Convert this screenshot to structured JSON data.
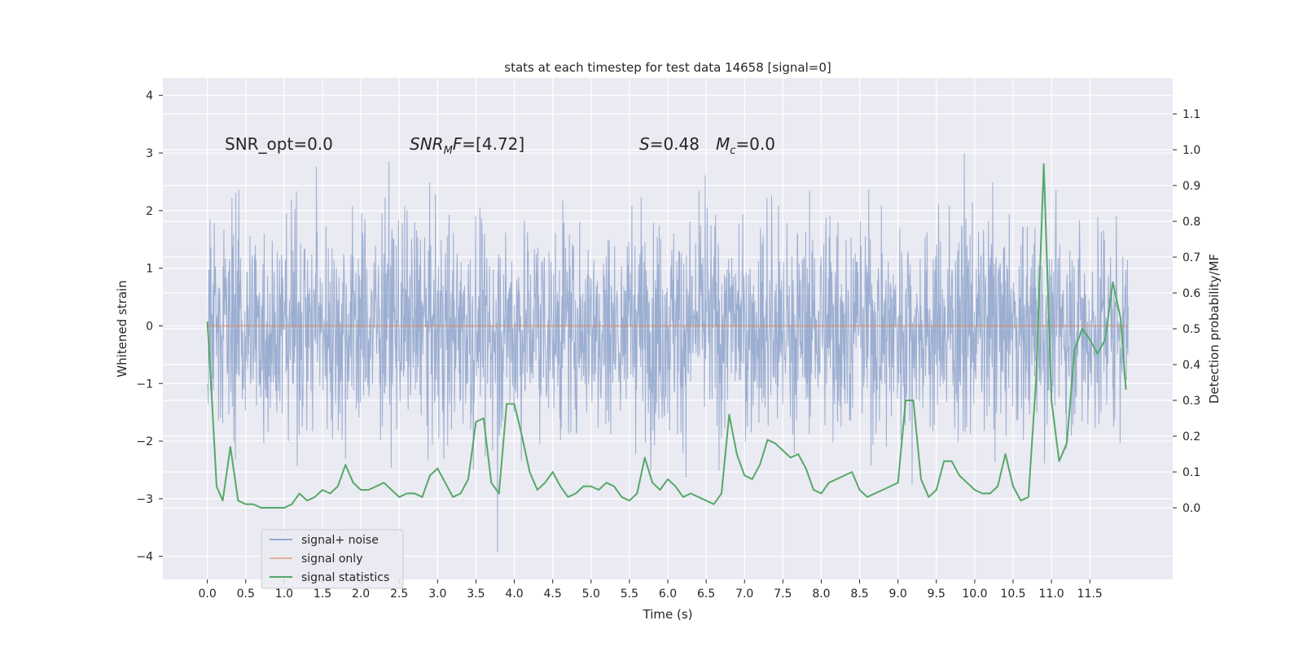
{
  "chart_data": {
    "type": "line",
    "title": "stats at each timestep for test data 14658 [signal=0]",
    "xlabel": "Time (s)",
    "ylabel_left": "Whitened strain",
    "ylabel_right": "Detection probability/MF",
    "xlim": [
      -0.58,
      12.58
    ],
    "ylim_left": [
      -4.4,
      4.3
    ],
    "ylim_right": [
      -0.2,
      1.2
    ],
    "x_ticks": [
      "0.0",
      "0.5",
      "1.0",
      "1.5",
      "2.0",
      "2.5",
      "3.0",
      "3.5",
      "4.0",
      "4.5",
      "5.0",
      "5.5",
      "6.0",
      "6.5",
      "7.0",
      "7.5",
      "8.0",
      "8.5",
      "9.0",
      "9.5",
      "10.0",
      "10.5",
      "11.0",
      "11.5"
    ],
    "y_ticks_left": [
      "4",
      "3",
      "2",
      "1",
      "0",
      "−1",
      "−2",
      "−3",
      "−4"
    ],
    "y_ticks_right": [
      "1.1",
      "1.0",
      "0.9",
      "0.8",
      "0.7",
      "0.6",
      "0.5",
      "0.4",
      "0.3",
      "0.2",
      "0.1",
      "0.0"
    ],
    "grid": true,
    "background": "#eaeaf2",
    "annotations": {
      "snr_opt": "SNR_opt=0.0",
      "snr_mf_prefix": "SNR",
      "snr_mf_sub": "M",
      "snr_mf_mid": "F",
      "snr_mf_value": "=[4.72]",
      "s_symbol": "S",
      "s_value": "=0.48",
      "mc_symbol": "M",
      "mc_sub": "c",
      "mc_value": "=0.0"
    },
    "legend": {
      "position": "lower left",
      "entries": [
        {
          "label": "signal+ noise",
          "color": "#4c72b0"
        },
        {
          "label": "signal only",
          "color": "#dd8452"
        },
        {
          "label": "signal statistics",
          "color": "#55a868"
        }
      ]
    },
    "series": [
      {
        "name": "signal+ noise",
        "axis": "left",
        "color": "#4c72b0",
        "x_range": [
          0.0,
          12.0
        ],
        "typical_amplitude": 1.2,
        "envelope_max": 3.9,
        "envelope_min": -4.1
      },
      {
        "name": "signal only",
        "axis": "left",
        "color": "#dd8452",
        "x": [
          0.0,
          12.0
        ],
        "y": [
          0.0,
          0.0
        ]
      },
      {
        "name": "signal statistics",
        "axis": "right",
        "color": "#55a868",
        "x": [
          0.0,
          0.06,
          0.12,
          0.2,
          0.3,
          0.4,
          0.5,
          0.6,
          0.7,
          0.8,
          0.9,
          1.0,
          1.1,
          1.2,
          1.3,
          1.4,
          1.5,
          1.6,
          1.7,
          1.8,
          1.9,
          2.0,
          2.1,
          2.2,
          2.3,
          2.4,
          2.5,
          2.6,
          2.7,
          2.8,
          2.9,
          3.0,
          3.1,
          3.2,
          3.3,
          3.4,
          3.5,
          3.6,
          3.7,
          3.8,
          3.9,
          4.0,
          4.1,
          4.2,
          4.3,
          4.4,
          4.5,
          4.6,
          4.7,
          4.8,
          4.9,
          5.0,
          5.1,
          5.2,
          5.3,
          5.4,
          5.5,
          5.6,
          5.7,
          5.8,
          5.9,
          6.0,
          6.1,
          6.2,
          6.3,
          6.4,
          6.5,
          6.6,
          6.7,
          6.8,
          6.9,
          7.0,
          7.1,
          7.2,
          7.3,
          7.4,
          7.5,
          7.6,
          7.7,
          7.8,
          7.9,
          8.0,
          8.1,
          8.2,
          8.3,
          8.4,
          8.5,
          8.6,
          8.7,
          8.8,
          8.9,
          9.0,
          9.1,
          9.2,
          9.3,
          9.4,
          9.5,
          9.6,
          9.7,
          9.8,
          9.9,
          10.0,
          10.1,
          10.2,
          10.3,
          10.4,
          10.5,
          10.6,
          10.7,
          10.8,
          10.9,
          11.0,
          11.1,
          11.2,
          11.3,
          11.4,
          11.5,
          11.6,
          11.7,
          11.8,
          11.9,
          11.97
        ],
        "y": [
          0.52,
          0.3,
          0.06,
          0.02,
          0.17,
          0.02,
          0.01,
          0.01,
          0.0,
          0.0,
          0.0,
          0.0,
          0.01,
          0.04,
          0.02,
          0.03,
          0.05,
          0.04,
          0.06,
          0.12,
          0.07,
          0.05,
          0.05,
          0.06,
          0.07,
          0.05,
          0.03,
          0.04,
          0.04,
          0.03,
          0.09,
          0.11,
          0.07,
          0.03,
          0.04,
          0.08,
          0.24,
          0.25,
          0.07,
          0.04,
          0.29,
          0.29,
          0.2,
          0.1,
          0.05,
          0.07,
          0.1,
          0.06,
          0.03,
          0.04,
          0.06,
          0.06,
          0.05,
          0.07,
          0.06,
          0.03,
          0.02,
          0.04,
          0.14,
          0.07,
          0.05,
          0.08,
          0.06,
          0.03,
          0.04,
          0.03,
          0.02,
          0.01,
          0.04,
          0.26,
          0.15,
          0.09,
          0.08,
          0.12,
          0.19,
          0.18,
          0.16,
          0.14,
          0.15,
          0.11,
          0.05,
          0.04,
          0.07,
          0.08,
          0.09,
          0.1,
          0.05,
          0.03,
          0.04,
          0.05,
          0.06,
          0.07,
          0.3,
          0.3,
          0.08,
          0.03,
          0.05,
          0.13,
          0.13,
          0.09,
          0.07,
          0.05,
          0.04,
          0.04,
          0.06,
          0.15,
          0.06,
          0.02,
          0.03,
          0.36,
          0.96,
          0.3,
          0.13,
          0.18,
          0.44,
          0.5,
          0.47,
          0.43,
          0.47,
          0.63,
          0.53,
          0.33
        ]
      }
    ]
  }
}
